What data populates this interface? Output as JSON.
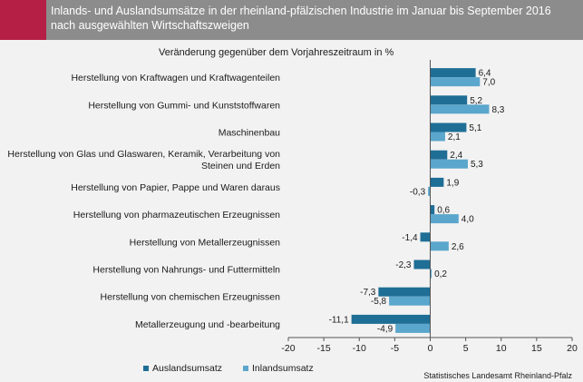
{
  "header": {
    "title_line1": "Inlands- und Auslandsumsätze in der rheinland-pfälzischen Industrie im Januar bis September 2016",
    "title_line2": "nach ausgewählten Wirtschaftszweigen"
  },
  "source": "Statistisches Landesamt Rheinland-Pfalz",
  "colors": {
    "accent": "#b51f45",
    "header": "#8c8c8c",
    "auslandsumsatz": "#1f6e96",
    "inlandsumsatz": "#5ba6cc"
  },
  "chart_data": {
    "type": "bar",
    "orientation": "horizontal",
    "subtitle": "Veränderung gegenüber dem Vorjahreszeitraum  in %",
    "categories": [
      [
        "Herstellung von Kraftwagen und Kraftwagenteilen"
      ],
      [
        "Herstellung von Gummi- und Kunststoffwaren"
      ],
      [
        "Maschinenbau"
      ],
      [
        "Herstellung von Glas und Glaswaren, Keramik, Verarbeitung von",
        "Steinen und Erden"
      ],
      [
        "Herstellung von Papier, Pappe und Waren daraus"
      ],
      [
        "Herstellung von pharmazeutischen Erzeugnissen"
      ],
      [
        "Herstellung von Metallerzeugnissen"
      ],
      [
        "Herstellung von Nahrungs- und Futtermitteln"
      ],
      [
        "Herstellung von chemischen Erzeugnissen"
      ],
      [
        "Metallerzeugung und -bearbeitung"
      ]
    ],
    "series": [
      {
        "name": "Auslandsumsatz",
        "values": [
          6.4,
          5.2,
          5.1,
          2.4,
          1.9,
          0.6,
          -1.4,
          -2.3,
          -7.3,
          -11.1
        ],
        "labels": [
          "6,4",
          "5,2",
          "5,1",
          "2,4",
          "1,9",
          "0,6",
          "-1,4",
          "-2,3",
          "-7,3",
          "-11,1"
        ]
      },
      {
        "name": "Inlandsumsatz",
        "values": [
          7.0,
          8.3,
          2.1,
          5.3,
          -0.3,
          4.0,
          2.6,
          0.2,
          -5.8,
          -4.9
        ],
        "labels": [
          "7,0",
          "8,3",
          "2,1",
          "5,3",
          "-0,3",
          "4,0",
          "2,6",
          "0,2",
          "-5,8",
          "-4,9"
        ]
      }
    ],
    "xlim": [
      -20,
      20
    ],
    "xticks": [
      -20,
      -15,
      -10,
      -5,
      0,
      5,
      10,
      15,
      20
    ],
    "grid": false,
    "legend": "bottom"
  }
}
